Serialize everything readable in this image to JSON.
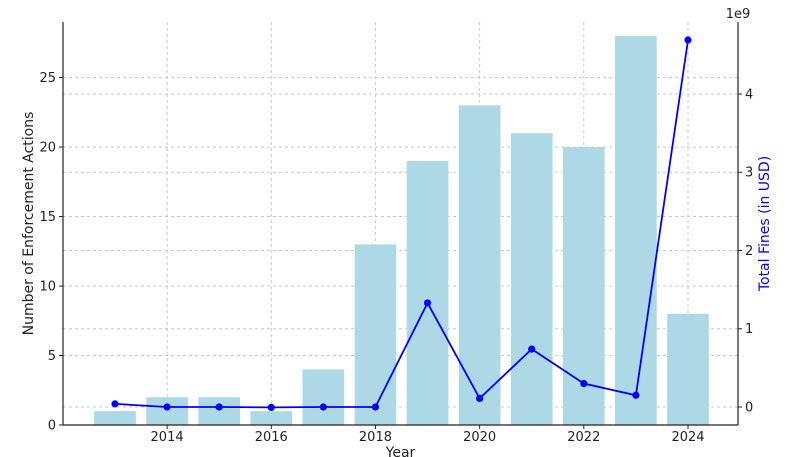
{
  "chart_data": {
    "type": "bar+line",
    "xlabel": "Year",
    "x_ticks": [
      "2014",
      "2016",
      "2018",
      "2020",
      "2022",
      "2024"
    ],
    "categories": [
      "2013",
      "2014",
      "2015",
      "2016",
      "2017",
      "2018",
      "2019",
      "2020",
      "2021",
      "2022",
      "2023",
      "2024"
    ],
    "series": [
      {
        "type": "bar",
        "axis": "left",
        "color": "#add8e6",
        "values": [
          1,
          2,
          2,
          1,
          4,
          13,
          19,
          23,
          21,
          20,
          28,
          8
        ]
      },
      {
        "type": "line",
        "axis": "right",
        "color": "#0000ff",
        "marker": "circle",
        "values": [
          40000000,
          0,
          0,
          -5000000,
          0,
          0,
          1330000000,
          110000000,
          740000000,
          300000000,
          150000000,
          4690000000
        ]
      }
    ],
    "left_axis": {
      "label": "Number of Enforcement Actions",
      "range": [
        0,
        29
      ],
      "ticks": [
        "0",
        "5",
        "10",
        "15",
        "20",
        "25"
      ]
    },
    "right_axis": {
      "label": "Total Fines (in USD)",
      "label_color": "#0000ff",
      "range": [
        -230000000,
        4920000000
      ],
      "ticks": [
        "0",
        "1",
        "2",
        "3",
        "4"
      ],
      "offset_text": "1e9"
    },
    "grid": true,
    "grid_style": "dashed",
    "legend": "none"
  }
}
